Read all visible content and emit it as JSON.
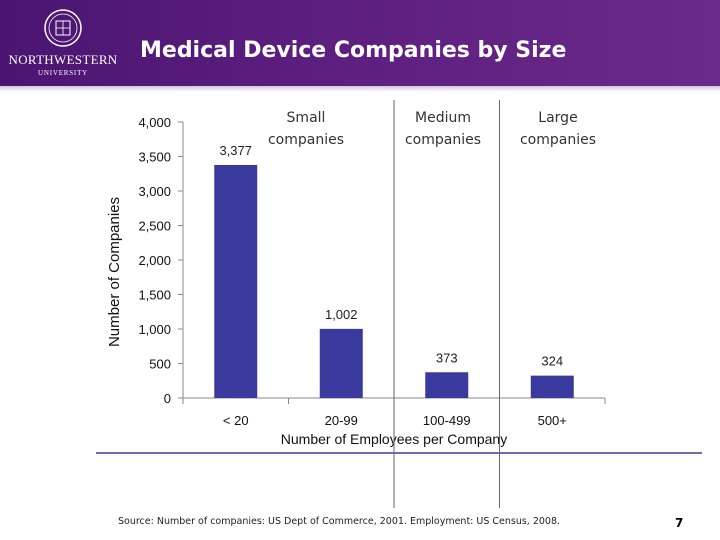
{
  "header": {
    "title": "Medical Device Companies by Size",
    "logo_name": "NORTHWESTERN",
    "logo_sub": "UNIVERSITY"
  },
  "colors": {
    "header": "#5b1d7e",
    "bar": "#3a3a9e",
    "rule": "#3a3a9e"
  },
  "footer": {
    "source": "Source: Number of companies: US Dept of Commerce, 2001. Employment: US Census, 2008.",
    "page_number": "7"
  },
  "chart_data": {
    "type": "bar",
    "categories": [
      "< 20",
      "20-99",
      "100-499",
      "500+"
    ],
    "values": [
      3377,
      1002,
      373,
      324
    ],
    "value_labels": [
      "3,377",
      "1,002",
      "373",
      "324"
    ],
    "xlabel": "Number of Employees per Company",
    "ylabel": "Number of Companies",
    "ylim": [
      0,
      4000
    ],
    "yticks": [
      0,
      500,
      1000,
      1500,
      2000,
      2500,
      3000,
      3500,
      4000
    ],
    "ytick_labels": [
      "0",
      "500",
      "1,000",
      "1,500",
      "2,000",
      "2,500",
      "3,000",
      "3,500",
      "4,000"
    ],
    "grid": false,
    "annotations": [
      {
        "text_line1": "Small",
        "text_line2": "companies"
      },
      {
        "text_line1": "Medium",
        "text_line2": "companies"
      },
      {
        "text_line1": "Large",
        "text_line2": "companies"
      }
    ]
  }
}
